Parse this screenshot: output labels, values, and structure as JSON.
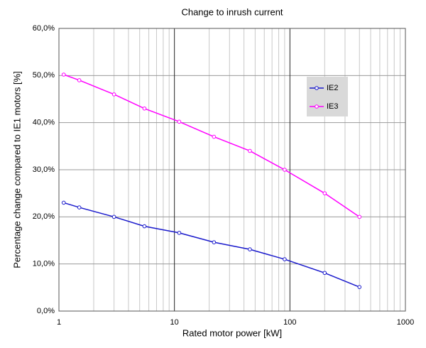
{
  "chart_data": {
    "type": "line",
    "title": "Change to inrush current",
    "x_label": "Rated motor power [kW]",
    "y_label": "Percentage change compared to IE1 motors [%]",
    "x_scale": "log",
    "xlim": [
      1,
      1000
    ],
    "xticks": [
      1,
      10,
      100,
      1000
    ],
    "ylim": [
      0,
      60
    ],
    "yticks": [
      {
        "value": 0,
        "label": "0,0%"
      },
      {
        "value": 10,
        "label": "10,0%"
      },
      {
        "value": 20,
        "label": "20,0%"
      },
      {
        "value": 30,
        "label": "30,0%"
      },
      {
        "value": 40,
        "label": "40,0%"
      },
      {
        "value": 50,
        "label": "50,0%"
      },
      {
        "value": 60,
        "label": "60,0%"
      }
    ],
    "grid": true,
    "legend": "upper right",
    "x": [
      1.1,
      1.5,
      3,
      5.5,
      11,
      22,
      45,
      90,
      200,
      400
    ],
    "series": [
      {
        "name": "IE2",
        "color": "#1a1acc",
        "values": [
          23,
          22,
          20,
          18,
          16.6,
          14.6,
          13.1,
          11,
          8.1,
          5.1
        ]
      },
      {
        "name": "IE3",
        "color": "#ff00ff",
        "values": [
          50.2,
          49,
          46,
          43,
          40.2,
          37,
          34,
          30,
          25,
          20
        ]
      }
    ]
  }
}
